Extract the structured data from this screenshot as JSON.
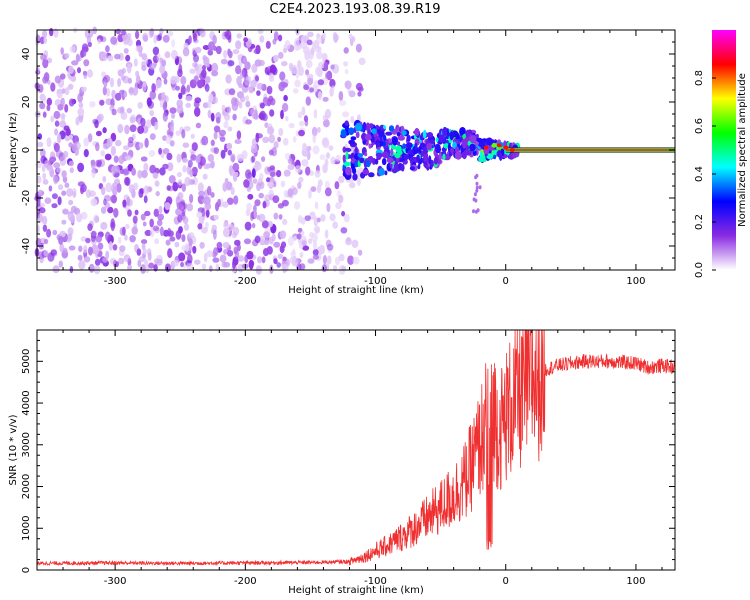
{
  "title": "C2E4.2023.193.08.39.R19",
  "chart_data": [
    {
      "type": "heatmap",
      "xlabel": "Height of straight line (km)",
      "ylabel": "Frequency (Hz)",
      "xlim": [
        -360,
        130
      ],
      "ylim": [
        -50,
        50
      ],
      "xticks": [
        -300,
        -200,
        -100,
        0,
        100
      ],
      "yticks": [
        -40,
        -20,
        0,
        20,
        40
      ],
      "colorbar": {
        "label": "Normalized spectral amplitude",
        "range": [
          0,
          1
        ],
        "ticks": [
          0.0,
          0.2,
          0.4,
          0.6,
          0.8
        ],
        "colors": [
          "#ffffff",
          "#8a2be2",
          "#0000ff",
          "#00ffff",
          "#00ff00",
          "#ffff00",
          "#ff0000",
          "#ff00ff"
        ]
      },
      "features": {
        "noise_region_x": [
          -360,
          -110
        ],
        "signal_region_x": [
          -125,
          10
        ],
        "carrier_line_x": [
          0,
          130
        ],
        "carrier_line_frequency": 0
      }
    },
    {
      "type": "line",
      "xlabel": "Height of straight line (km)",
      "ylabel": "SNR (10 * v/v)",
      "xlim": [
        -360,
        130
      ],
      "ylim": [
        0,
        5750
      ],
      "xticks": [
        -300,
        -200,
        -100,
        0,
        100
      ],
      "yticks": [
        0,
        1000,
        2000,
        3000,
        4000,
        5000
      ],
      "color": "#f03030",
      "series": [
        {
          "x": [
            -360,
            -300,
            -250,
            -200,
            -150,
            -120,
            -110,
            -100,
            -90,
            -80,
            -70,
            -60,
            -50,
            -40,
            -30,
            -25,
            -20,
            -15,
            -10,
            -5,
            0,
            10,
            20,
            30,
            40,
            60,
            80,
            100,
            110,
            120,
            130
          ],
          "y": [
            160,
            170,
            160,
            170,
            180,
            200,
            300,
            450,
            600,
            800,
            1000,
            1250,
            1500,
            1800,
            2200,
            2600,
            3000,
            3500,
            3900,
            3300,
            3700,
            4200,
            4600,
            4800,
            4900,
            5000,
            5000,
            4950,
            4850,
            4900,
            4850
          ]
        }
      ]
    }
  ]
}
